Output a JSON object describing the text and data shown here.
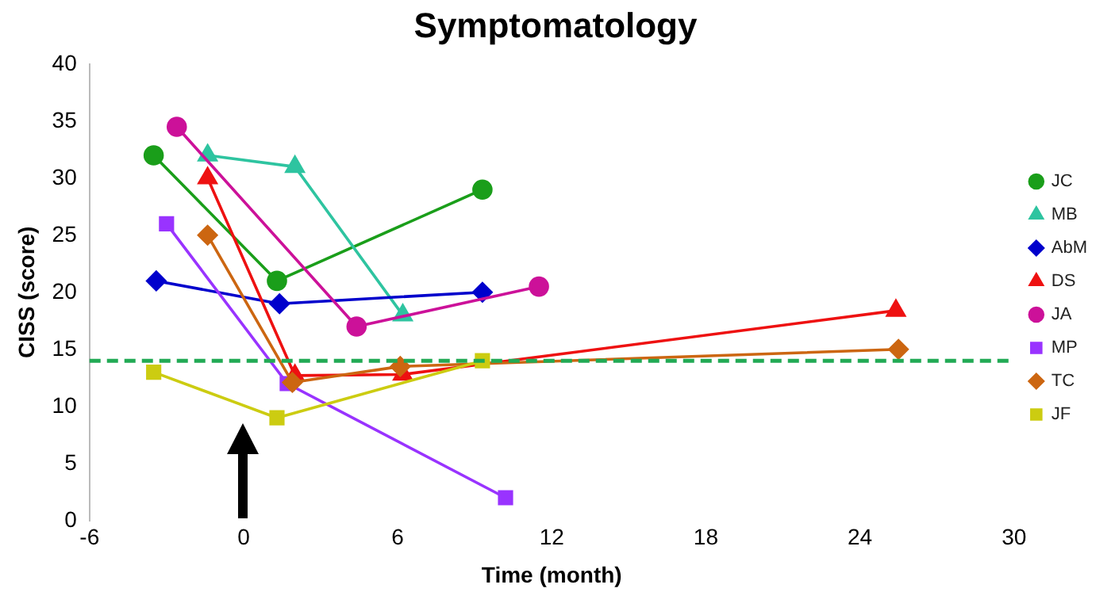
{
  "chart_data": {
    "type": "line",
    "title": "Symptomatology",
    "xlabel": "Time (month)",
    "ylabel": "CISS (score)",
    "xlim": [
      -6,
      30
    ],
    "xticks": [
      -6,
      0,
      6,
      12,
      18,
      24,
      30
    ],
    "ylim": [
      0,
      40
    ],
    "yticks": [
      0,
      5,
      10,
      15,
      20,
      25,
      30,
      35,
      40
    ],
    "grid": false,
    "legend": "right",
    "ref_lines": [
      {
        "axis": "y",
        "value": 14,
        "color": "#22aa55",
        "line_style": "dashed"
      }
    ],
    "series": [
      {
        "name": "JC",
        "color": "#1a9e1a",
        "marker": "circle",
        "x": [
          -3.5,
          1.3,
          9.3
        ],
        "values": [
          32,
          21,
          29
        ]
      },
      {
        "name": "MB",
        "color": "#2ec4a0",
        "marker": "triangle",
        "x": [
          -1.4,
          2,
          6.2
        ],
        "values": [
          32,
          31,
          18
        ]
      },
      {
        "name": "AbM",
        "color": "#0000cc",
        "marker": "diamond",
        "x": [
          -3.4,
          1.4,
          9.3
        ],
        "values": [
          21,
          19,
          20
        ]
      },
      {
        "name": "DS",
        "color": "#ee1111",
        "marker": "triangle",
        "x": [
          -1.4,
          2,
          6.2,
          25.4
        ],
        "values": [
          30,
          12.7,
          12.8,
          18.4
        ]
      },
      {
        "name": "JA",
        "color": "#cc1199",
        "marker": "circle",
        "x": [
          -2.6,
          4.4,
          11.5
        ],
        "values": [
          34.5,
          17,
          20.5
        ]
      },
      {
        "name": "MP",
        "color": "#9933ff",
        "marker": "square",
        "x": [
          -3,
          1.7,
          10.2
        ],
        "values": [
          26,
          12,
          2
        ]
      },
      {
        "name": "TC",
        "color": "#cc6611",
        "marker": "diamond",
        "x": [
          -1.4,
          1.9,
          6.1,
          25.5
        ],
        "values": [
          25,
          12.1,
          13.5,
          15
        ]
      },
      {
        "name": "JF",
        "color": "#cccc11",
        "marker": "square",
        "x": [
          -3.5,
          1.3,
          9.3
        ],
        "values": [
          13,
          9,
          14
        ]
      }
    ]
  }
}
